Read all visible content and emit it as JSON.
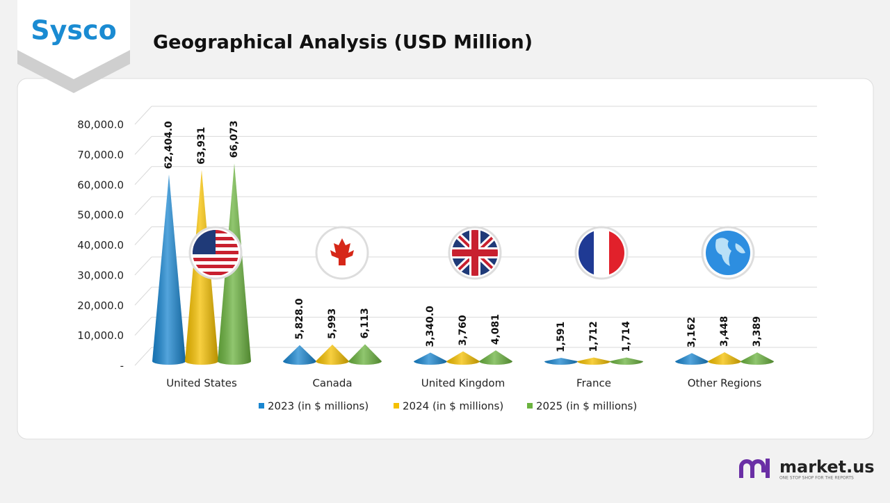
{
  "brand": "Sysco",
  "footer": {
    "logo": "market.us",
    "tagline": "ONE STOP SHOP FOR THE REPORTS"
  },
  "chart_data": {
    "type": "cone-bar",
    "title": "Geographical Analysis (USD Million)",
    "categories": [
      "United States",
      "Canada",
      "United Kingdom",
      "France",
      "Other Regions"
    ],
    "series": [
      {
        "name": "2023 (in $ millions)",
        "color": "#1a86d0",
        "values": [
          62404.0,
          5828.0,
          3340.0,
          1591,
          3162
        ],
        "value_labels": [
          "62,404.0",
          "5,828.0",
          "3,340.0",
          "1,591",
          "3,162"
        ]
      },
      {
        "name": "2024 (in $ millions)",
        "color": "#f5c000",
        "values": [
          63931,
          5993,
          3760,
          1712,
          3448
        ],
        "value_labels": [
          "63,931",
          "5,993",
          "3,760",
          "1,712",
          "3,448"
        ]
      },
      {
        "name": "2025 (in $ millions)",
        "color": "#6bb33f",
        "values": [
          66073,
          6113,
          4081,
          1714,
          3389
        ],
        "value_labels": [
          "66,073",
          "6,113",
          "4,081",
          "1,714",
          "3,389"
        ]
      }
    ],
    "ylim": [
      0,
      80000
    ],
    "yticks": [
      {
        "value": 0,
        "label": "-"
      },
      {
        "value": 10000,
        "label": "10,000.0"
      },
      {
        "value": 20000,
        "label": "20,000.0"
      },
      {
        "value": 30000,
        "label": "30,000.0"
      },
      {
        "value": 40000,
        "label": "40,000.0"
      },
      {
        "value": 50000,
        "label": "50,000.0"
      },
      {
        "value": 60000,
        "label": "60,000.0"
      },
      {
        "value": 70000,
        "label": "70,000.0"
      },
      {
        "value": 80000,
        "label": "80,000.0"
      }
    ],
    "grid": true
  }
}
